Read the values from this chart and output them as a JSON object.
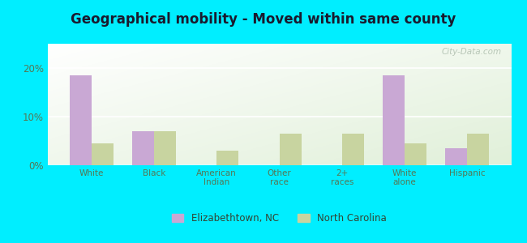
{
  "title": "Geographical mobility - Moved within same county",
  "categories": [
    "White",
    "Black",
    "American\nIndian",
    "Other\nrace",
    "2+\nraces",
    "White\nalone",
    "Hispanic"
  ],
  "elizabethtown": [
    18.5,
    7.0,
    0.0,
    0.0,
    0.0,
    18.5,
    3.5
  ],
  "north_carolina": [
    4.5,
    7.0,
    3.0,
    6.5,
    6.5,
    4.5,
    6.5
  ],
  "bar_color_eliz": "#c9a8d4",
  "bar_color_nc": "#c8d4a0",
  "background_outer": "#00eeff",
  "title_fontsize": 12,
  "ylim": [
    0,
    25
  ],
  "yticks": [
    0,
    10,
    20
  ],
  "ytick_labels": [
    "0%",
    "10%",
    "20%"
  ],
  "legend_label_eliz": "Elizabethtown, NC",
  "legend_label_nc": "North Carolina",
  "bar_width": 0.35,
  "watermark": "City-Data.com"
}
